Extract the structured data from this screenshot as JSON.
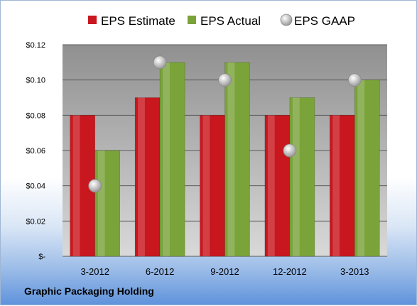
{
  "company": "Graphic Packaging Holding",
  "chart_data": {
    "type": "bar",
    "categories": [
      "3-2012",
      "6-2012",
      "9-2012",
      "12-2012",
      "3-2013"
    ],
    "series": [
      {
        "name": "EPS Estimate",
        "kind": "bar",
        "color": "#c8171e",
        "values": [
          0.08,
          0.09,
          0.08,
          0.08,
          0.08
        ]
      },
      {
        "name": "EPS Actual",
        "kind": "bar",
        "color": "#7aa33a",
        "values": [
          0.06,
          0.11,
          0.11,
          0.09,
          0.1
        ]
      },
      {
        "name": "EPS GAAP",
        "kind": "scatter",
        "color": "#c0c0c0",
        "values": [
          0.04,
          0.11,
          0.1,
          0.06,
          0.1
        ]
      }
    ],
    "yticks": [
      "$-",
      "$0.02",
      "$0.04",
      "$0.06",
      "$0.08",
      "$0.10",
      "$0.12"
    ],
    "ylim": [
      0,
      0.12
    ],
    "grid": true,
    "legend": "top",
    "plot_background": [
      "#909090",
      "#d9d9d9"
    ]
  }
}
